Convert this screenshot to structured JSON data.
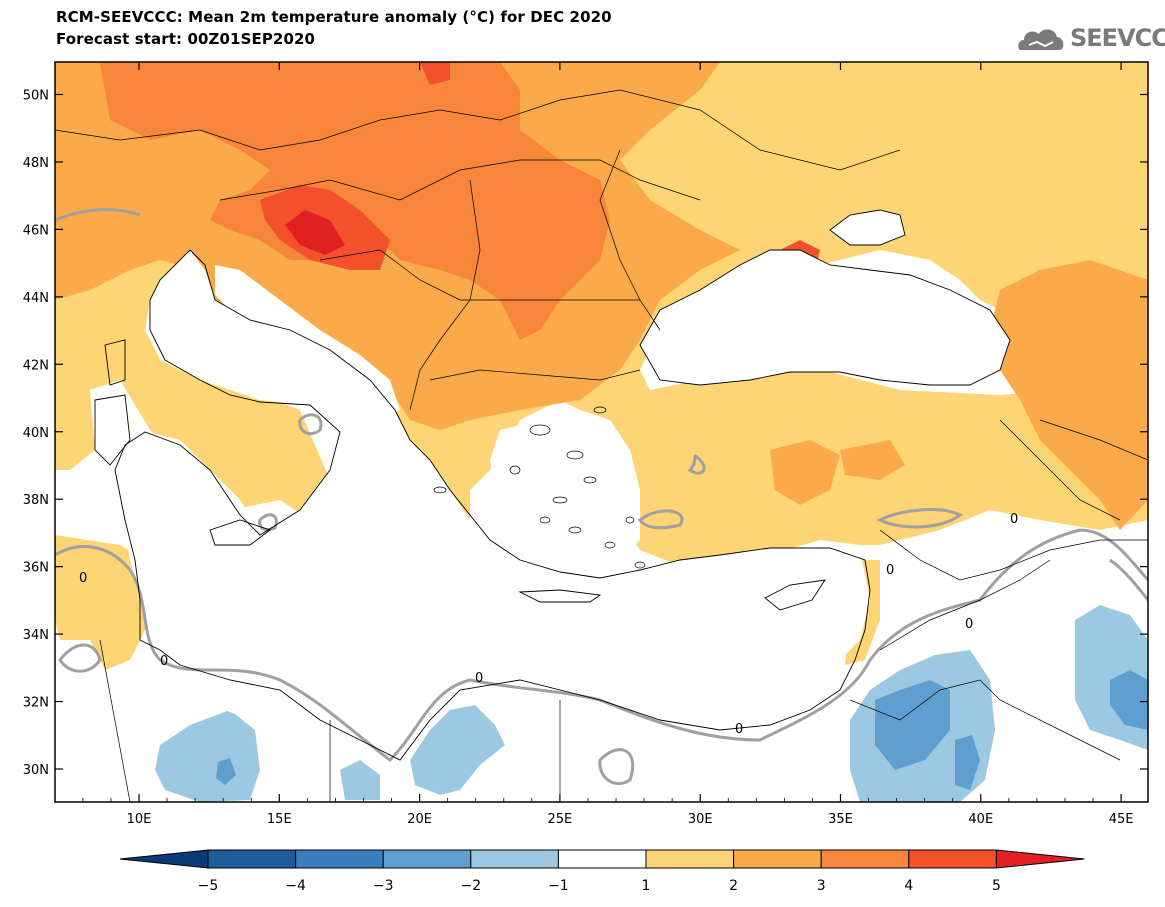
{
  "header": {
    "title_line1": "RCM-SEEVCCC: Mean 2m temperature anomaly (°C) for DEC 2020",
    "title_line2": "Forecast start: 00Z01SEP2020"
  },
  "logo": {
    "text": "SEEVCCC",
    "icon": "cloud-icon"
  },
  "map": {
    "lat_labels": [
      "30N",
      "32N",
      "34N",
      "36N",
      "38N",
      "40N",
      "42N",
      "44N",
      "46N",
      "48N",
      "50N"
    ],
    "lon_labels": [
      "10E",
      "15E",
      "20E",
      "25E",
      "30E",
      "35E",
      "40E",
      "45E"
    ],
    "contour_label": "0",
    "colors": {
      "land_outline": "#000000",
      "zero_contour": "#a0a0a0",
      "anom_1_2": "#fdd575",
      "anom_2_3": "#fbaa4a",
      "anom_3_4": "#f7853a",
      "anom_4_5": "#f2512c",
      "anom_5_plus": "#e02022",
      "anom_m1_m2": "#9cc9e1",
      "anom_m2_m3": "#5f9fcf",
      "anom_m3_m4": "#3a7fbd",
      "anom_m4_m5": "#1e5c9c",
      "anom_m5_minus": "#0c3a78"
    }
  },
  "colorbar": {
    "labels": [
      "−5",
      "−4",
      "−3",
      "−2",
      "−1",
      "1",
      "2",
      "3",
      "4",
      "5"
    ],
    "colors": [
      "#0c3a78",
      "#1e5c9c",
      "#3a7fbd",
      "#5f9fcf",
      "#9cc9e1",
      "#ffffff",
      "#fdd575",
      "#fbaa4a",
      "#f7853a",
      "#f2512c",
      "#e02022"
    ]
  }
}
